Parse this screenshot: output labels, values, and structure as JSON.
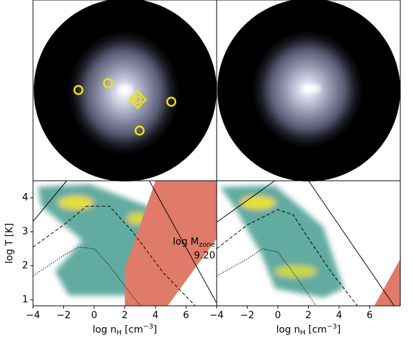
{
  "chart_data": [
    {
      "type": "line",
      "xlim": [
        -4,
        8
      ],
      "ylim": [
        0.82,
        4.5
      ],
      "xticks": [
        {
          "value": -4,
          "label": "−4"
        },
        {
          "value": -2,
          "label": "−2"
        },
        0,
        2,
        4,
        6
      ],
      "yticks": [
        1,
        2,
        3,
        4
      ],
      "ylabel": "log T [K]",
      "xlabel": {
        "main": "log n",
        "sub": "H",
        "unit": " [cm",
        "sup": "−3",
        "close": "]"
      },
      "annotation": {
        "main": "log M",
        "sub": "zone",
        "value": "9.20"
      },
      "series": [
        {
          "style": "fill",
          "color": "#e07b6a",
          "x": [
            2,
            2,
            4,
            8,
            8,
            4.8
          ],
          "values": [
            0.82,
            1.9,
            4.5,
            4.5,
            2.8,
            0.82
          ]
        },
        {
          "style": "solid",
          "color": "#000000",
          "x": [
            -4,
            -1.8
          ],
          "values": [
            3.3,
            4.5
          ]
        },
        {
          "style": "solid",
          "color": "#000000",
          "x": [
            3.6,
            8
          ],
          "values": [
            4.5,
            0.9
          ]
        },
        {
          "style": "dashed",
          "color": "#000000",
          "x": [
            -4,
            -2,
            -0.5,
            1,
            2.5,
            4.5,
            6.6
          ],
          "values": [
            2.55,
            3.2,
            3.75,
            3.75,
            3.0,
            1.8,
            0.82
          ]
        },
        {
          "style": "dotted",
          "color": "#000000",
          "x": [
            -4,
            -2,
            -1,
            0,
            1,
            2,
            3
          ],
          "values": [
            1.7,
            2.3,
            2.55,
            2.5,
            2.0,
            1.4,
            0.82
          ]
        }
      ]
    },
    {
      "type": "line",
      "xlim": [
        -4,
        8
      ],
      "ylim": [
        0.82,
        4.5
      ],
      "xticks": [
        {
          "value": -4,
          "label": "−4"
        },
        {
          "value": -2,
          "label": "−2"
        },
        0,
        2,
        4,
        6
      ],
      "xlabel": {
        "main": "log n",
        "sub": "H",
        "unit": " [cm",
        "sup": "−3",
        "close": "]"
      },
      "series": [
        {
          "style": "fill",
          "color": "#e07b6a",
          "x": [
            6.3,
            8,
            8
          ],
          "values": [
            0.82,
            2.2,
            0.82
          ]
        },
        {
          "style": "solid",
          "color": "#000000",
          "x": [
            -4,
            -0.2
          ],
          "values": [
            3.28,
            4.5
          ]
        },
        {
          "style": "solid",
          "color": "#000000",
          "x": [
            2.0,
            7.6
          ],
          "values": [
            4.5,
            0.82
          ]
        },
        {
          "style": "dashed",
          "color": "#000000",
          "x": [
            -4,
            -2,
            0,
            1,
            2,
            3.5,
            5.2
          ],
          "values": [
            2.5,
            3.2,
            3.65,
            3.5,
            2.8,
            1.8,
            0.82
          ]
        },
        {
          "style": "dotted",
          "color": "#000000",
          "x": [
            -4,
            -2,
            -1,
            0,
            1,
            2.5
          ],
          "values": [
            1.7,
            2.2,
            2.5,
            2.4,
            1.8,
            0.82
          ]
        }
      ]
    }
  ]
}
